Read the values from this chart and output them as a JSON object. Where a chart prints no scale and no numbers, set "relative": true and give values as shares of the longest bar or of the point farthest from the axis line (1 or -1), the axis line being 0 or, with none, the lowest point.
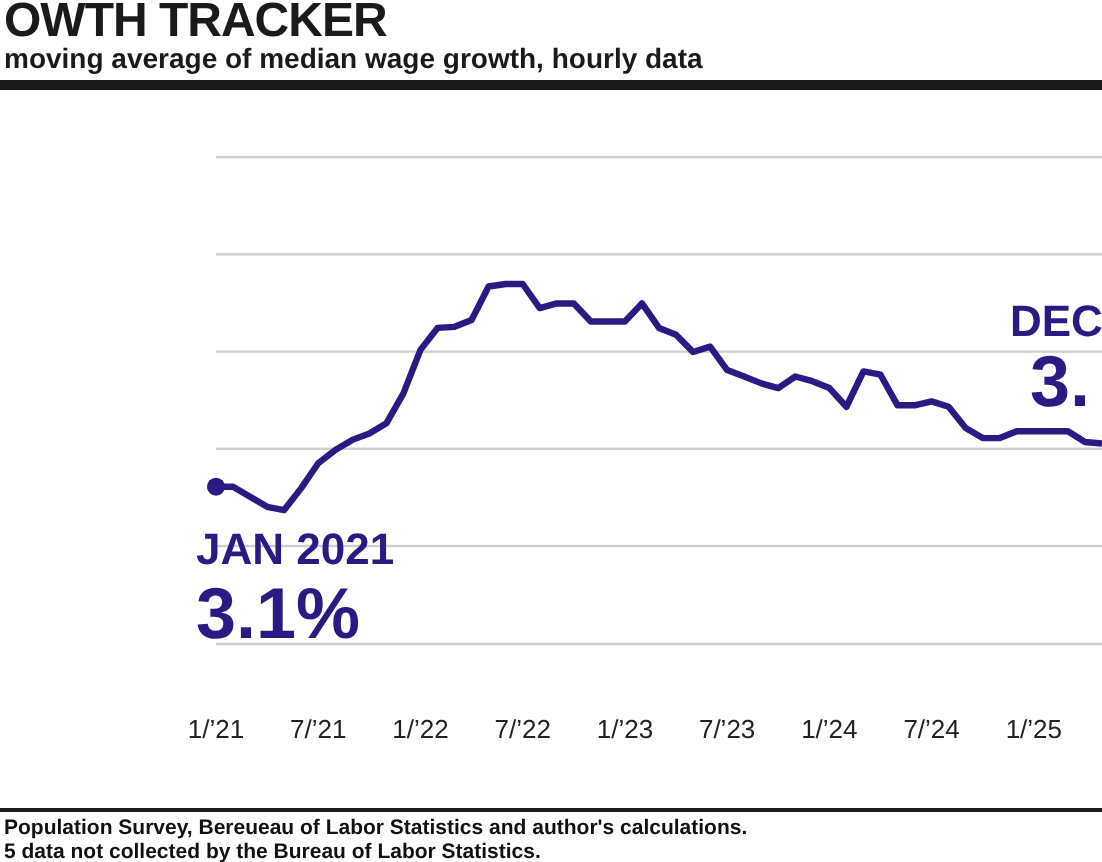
{
  "chart_data": {
    "type": "line",
    "title": "OWTH TRACKER",
    "subtitle": "moving average of median wage growth, hourly data",
    "relative": true,
    "line_style": "solid",
    "x": [
      "2021-01",
      "2021-02",
      "2021-03",
      "2021-04",
      "2021-05",
      "2021-06",
      "2021-07",
      "2021-08",
      "2021-09",
      "2021-10",
      "2021-11",
      "2021-12",
      "2022-01",
      "2022-02",
      "2022-03",
      "2022-04",
      "2022-05",
      "2022-06",
      "2022-07",
      "2022-08",
      "2022-09",
      "2022-10",
      "2022-11",
      "2022-12",
      "2023-01",
      "2023-02",
      "2023-03",
      "2023-04",
      "2023-05",
      "2023-06",
      "2023-07",
      "2023-08",
      "2023-09",
      "2023-10",
      "2023-11",
      "2023-12",
      "2024-01",
      "2024-02",
      "2024-03",
      "2024-04",
      "2024-05",
      "2024-06",
      "2024-07",
      "2024-08",
      "2024-09",
      "2024-10",
      "2024-11",
      "2024-12",
      "2025-01",
      "2025-02",
      "2025-03",
      "2025-04",
      "2025-05"
    ],
    "xlim": [
      "2021-01",
      "2025-05"
    ],
    "xticks": [
      {
        "value": "2021-01",
        "label": "1/’21"
      },
      {
        "value": "2021-07",
        "label": "7/’21"
      },
      {
        "value": "2022-01",
        "label": "1/’22"
      },
      {
        "value": "2022-07",
        "label": "7/’22"
      },
      {
        "value": "2023-01",
        "label": "1/’23"
      },
      {
        "value": "2023-07",
        "label": "7/’23"
      },
      {
        "value": "2024-01",
        "label": "1/’24"
      },
      {
        "value": "2024-07",
        "label": "7/’24"
      },
      {
        "value": "2025-01",
        "label": "1/’25"
      }
    ],
    "series": [
      {
        "color": "#2b1a84",
        "values": [
          0.437,
          0.437,
          0.409,
          0.381,
          0.372,
          0.433,
          0.502,
          0.539,
          0.567,
          0.585,
          0.613,
          0.696,
          0.817,
          0.878,
          0.881,
          0.9,
          0.993,
          1,
          1,
          0.933,
          0.946,
          0.946,
          0.896,
          0.896,
          0.896,
          0.946,
          0.878,
          0.859,
          0.811,
          0.826,
          0.761,
          0.743,
          0.724,
          0.711,
          0.743,
          0.73,
          0.711,
          0.659,
          0.757,
          0.748,
          0.663,
          0.663,
          0.674,
          0.659,
          0.6,
          0.572,
          0.572,
          0.591,
          0.591,
          0.591,
          0.591,
          0.561,
          0.557
        ]
      },
      {
        "type": "scatter",
        "color": "#2b1a84",
        "x": [
          "2021-01"
        ],
        "values": [
          0.437
        ]
      }
    ],
    "annotations": [
      "JAN 2021",
      "3.1%",
      "DEC",
      "3.",
      "Population Survey, Bereueau of Labor Statistics and author's calculations.",
      "5 data not collected by the Bureau of Labor Statistics."
    ]
  }
}
